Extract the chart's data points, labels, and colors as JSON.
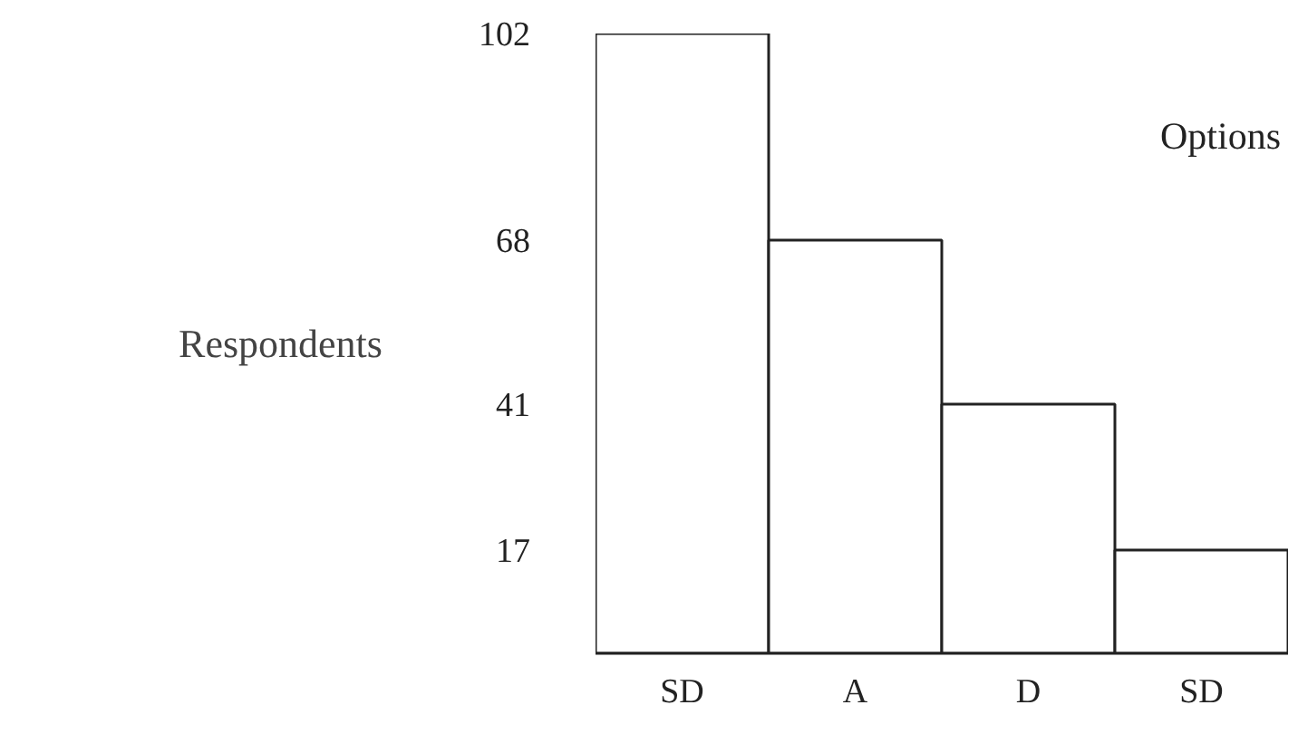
{
  "chart_data": {
    "type": "bar",
    "xlabel": "Options",
    "ylabel": "Respondents",
    "categories": [
      "SD",
      "A",
      "D",
      "SD"
    ],
    "values": [
      102,
      68,
      41,
      17
    ],
    "color": "#ffffff",
    "ylim": [
      0,
      102
    ],
    "yticks": [
      17,
      41,
      68,
      102
    ],
    "grid": false
  }
}
